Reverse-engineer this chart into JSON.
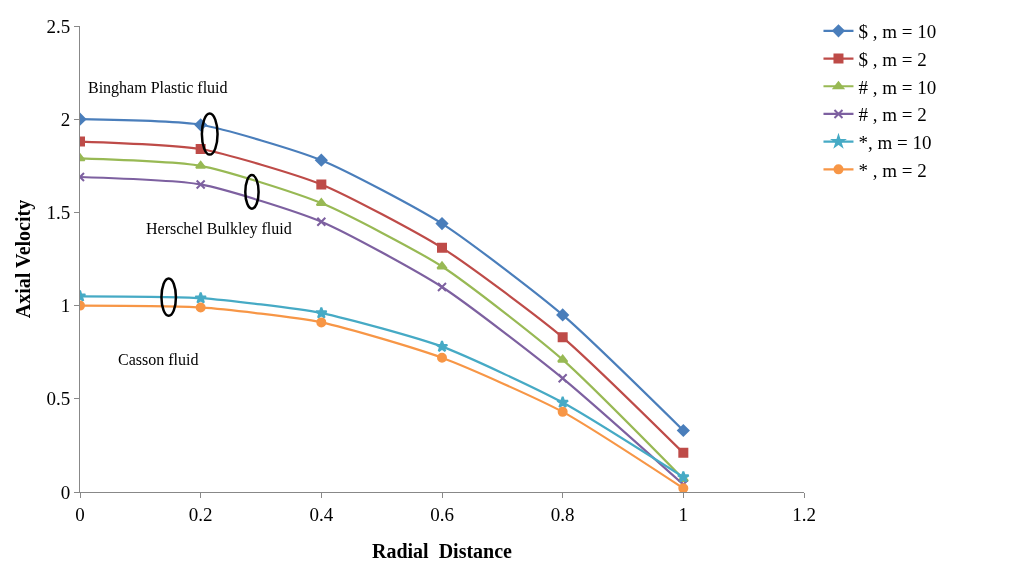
{
  "chart_data": {
    "type": "line",
    "xlabel": "Radial  Distance",
    "ylabel": "Axial Velocity",
    "x": [
      0,
      0.2,
      0.4,
      0.6,
      0.8,
      1
    ],
    "xlim": [
      0,
      1.2
    ],
    "xticks": [
      0,
      0.2,
      0.4,
      0.6,
      0.8,
      1,
      1.2
    ],
    "ylim": [
      0,
      2.5
    ],
    "yticks": [
      0,
      0.5,
      1,
      1.5,
      2,
      2.5
    ],
    "grid": false,
    "legend": "top right",
    "line_style": "solid",
    "series": [
      {
        "name": "$ , m = 10",
        "color": "#4a7ebb",
        "marker": "diamond",
        "values": [
          2.0,
          1.97,
          1.78,
          1.44,
          0.95,
          0.33
        ]
      },
      {
        "name": "$ , m = 2",
        "color": "#be4b48",
        "marker": "square",
        "values": [
          1.88,
          1.84,
          1.65,
          1.31,
          0.83,
          0.21
        ]
      },
      {
        "name": "# , m = 10",
        "color": "#98b954",
        "marker": "triangle",
        "values": [
          1.79,
          1.75,
          1.55,
          1.21,
          0.71,
          0.07
        ]
      },
      {
        "name": "# , m = 2",
        "color": "#7d60a0",
        "marker": "cross",
        "values": [
          1.69,
          1.65,
          1.45,
          1.1,
          0.61,
          0.04
        ]
      },
      {
        "name": "*, m = 10",
        "color": "#46aac5",
        "marker": "star",
        "values": [
          1.05,
          1.04,
          0.96,
          0.78,
          0.48,
          0.08
        ]
      },
      {
        "name": "* , m = 2",
        "color": "#f79646",
        "marker": "circle",
        "values": [
          1.0,
          0.99,
          0.91,
          0.72,
          0.43,
          0.02
        ]
      }
    ],
    "annotations": [
      "Bingham Plastic fluid",
      "Herschel Bulkley fluid",
      "Casson fluid"
    ]
  }
}
